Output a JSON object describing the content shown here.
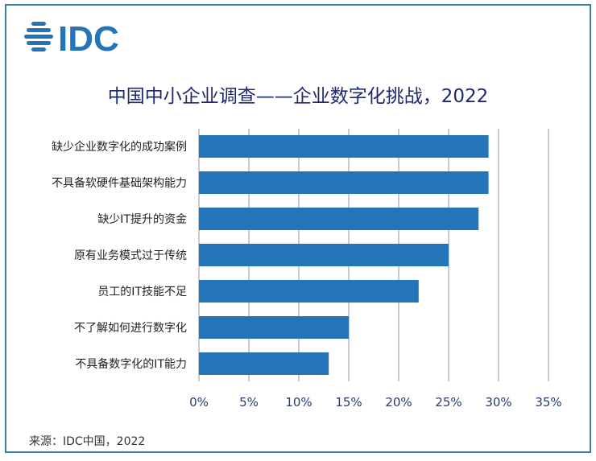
{
  "logo_text": "IDC",
  "source": "来源：IDC中国，2022",
  "colors": {
    "bar": "#2374b8",
    "grid": "#b9b9c9",
    "title": "#1f2a6e",
    "frame": "#3a7fa8"
  },
  "chart_data": {
    "type": "bar",
    "orientation": "horizontal",
    "title": "中国中小企业调查——企业数字化挑战，2022",
    "categories": [
      "缺少企业数字化的成功案例",
      "不具备软硬件基础架构能力",
      "缺少IT提升的资金",
      "原有业务模式过于传统",
      "员工的IT技能不足",
      "不了解如何进行数字化",
      "不具备数字化的IT能力"
    ],
    "values": [
      29,
      29,
      28,
      25,
      22,
      15,
      13
    ],
    "unit": "%",
    "xlim": [
      0,
      35
    ],
    "xticks": [
      "0%",
      "5%",
      "10%",
      "15%",
      "20%",
      "25%",
      "30%",
      "35%"
    ],
    "grid": true,
    "legend": "none"
  }
}
